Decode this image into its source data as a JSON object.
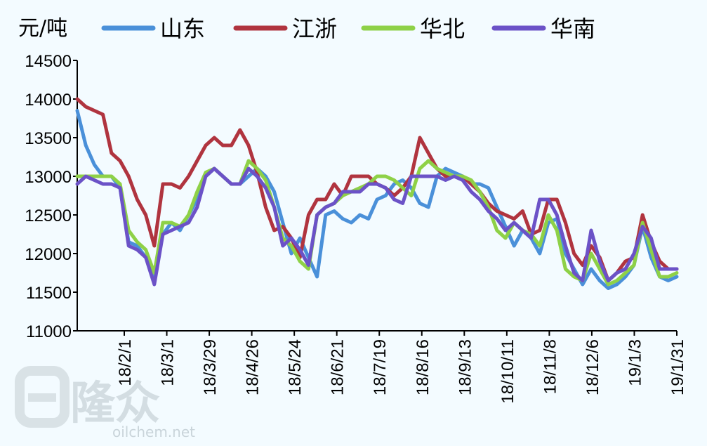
{
  "chart_data": {
    "type": "line",
    "unit_label": "元/吨",
    "ylim": [
      11000,
      14500
    ],
    "yticks": [
      "14500",
      "14000",
      "13500",
      "13000",
      "12500",
      "12000",
      "11500",
      "11000"
    ],
    "xtick_labels": [
      "18/2/1",
      "18/3/1",
      "18/3/29",
      "18/4/26",
      "18/5/24",
      "18/6/21",
      "18/7/19",
      "18/8/16",
      "18/9/13",
      "18/10/11",
      "18/11/8",
      "18/12/6",
      "19/1/3",
      "19/1/31"
    ],
    "legend_position": "top",
    "grid": false,
    "series": [
      {
        "name": "山东",
        "color": "#4a90d9",
        "values": [
          13850,
          13400,
          13150,
          13000,
          13000,
          12850,
          12150,
          12100,
          11950,
          11700,
          12250,
          12400,
          12300,
          12500,
          12700,
          13000,
          13100,
          13000,
          12900,
          12900,
          13000,
          13100,
          13000,
          12800,
          12400,
          12000,
          12200,
          11950,
          11700,
          12500,
          12550,
          12450,
          12400,
          12500,
          12450,
          12700,
          12750,
          12900,
          12950,
          12850,
          12650,
          12600,
          13000,
          13100,
          13050,
          13000,
          12900,
          12900,
          12850,
          12600,
          12350,
          12100,
          12300,
          12200,
          12000,
          12400,
          12450,
          12000,
          11800,
          11600,
          11800,
          11650,
          11550,
          11600,
          11700,
          11850,
          12350,
          11950,
          11700,
          11650,
          11700
        ]
      },
      {
        "name": "江浙",
        "color": "#b0343f",
        "values": [
          14000,
          13900,
          13850,
          13800,
          13300,
          13200,
          13000,
          12700,
          12500,
          12100,
          12900,
          12900,
          12850,
          13000,
          13200,
          13400,
          13500,
          13400,
          13400,
          13600,
          13400,
          13050,
          12600,
          12300,
          12350,
          12200,
          11950,
          12500,
          12700,
          12700,
          12900,
          12750,
          13000,
          13000,
          13000,
          12900,
          12850,
          12750,
          12850,
          13000,
          13500,
          13300,
          13100,
          13000,
          13000,
          13000,
          12900,
          12800,
          12650,
          12550,
          12500,
          12450,
          12550,
          12250,
          12300,
          12700,
          12700,
          12400,
          12000,
          11850,
          12100,
          11950,
          11650,
          11750,
          11900,
          11950,
          12500,
          12150,
          11900,
          11800,
          11800
        ]
      },
      {
        "name": "华北",
        "color": "#8ed147",
        "values": [
          13000,
          13000,
          13000,
          13000,
          13000,
          12900,
          12300,
          12150,
          12050,
          11750,
          12400,
          12400,
          12350,
          12500,
          12800,
          13050,
          13100,
          13000,
          12900,
          12900,
          13200,
          13100,
          12950,
          12600,
          12200,
          12100,
          11900,
          11800,
          12500,
          12600,
          12650,
          12750,
          12800,
          12850,
          12900,
          13000,
          13000,
          12950,
          12850,
          12750,
          13100,
          13200,
          13100,
          13050,
          13000,
          13000,
          12950,
          12800,
          12600,
          12300,
          12200,
          12400,
          12300,
          12250,
          12100,
          12500,
          12300,
          11800,
          11700,
          11650,
          12000,
          11800,
          11600,
          11650,
          11750,
          11850,
          12400,
          12050,
          11700,
          11700,
          11750
        ]
      },
      {
        "name": "华南",
        "color": "#6b52c7",
        "values": [
          12900,
          13000,
          12950,
          12900,
          12900,
          12850,
          12100,
          12050,
          11950,
          11600,
          12250,
          12300,
          12350,
          12400,
          12600,
          13000,
          13100,
          13000,
          12900,
          12900,
          13100,
          13000,
          12850,
          12600,
          12100,
          12200,
          12050,
          11850,
          12500,
          12600,
          12650,
          12800,
          12800,
          12800,
          12900,
          12900,
          12850,
          12700,
          12650,
          13000,
          13000,
          13000,
          13000,
          12950,
          13000,
          12950,
          12800,
          12700,
          12550,
          12450,
          12300,
          12400,
          12300,
          12200,
          12700,
          12700,
          12500,
          12100,
          11750,
          11650,
          12300,
          11900,
          11650,
          11750,
          11800,
          12000,
          12350,
          12200,
          11800,
          11800,
          11800
        ]
      }
    ]
  },
  "watermark": {
    "brand_cn": "隆众",
    "url": "oilchem.net"
  }
}
